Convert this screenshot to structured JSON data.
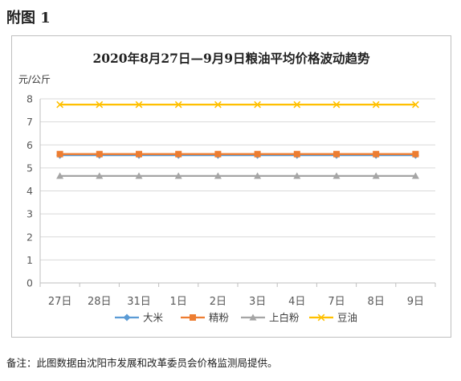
{
  "figure_label": "附图 1",
  "footnote": "备注：此图数据由沈阳市发展和改革委员会价格监测局提供。",
  "colors": {
    "大米": "#5b9bd5",
    "精粉": "#ed7d31",
    "上白粉": "#a5a5a5",
    "豆油": "#ffc000",
    "grid": "#d9d9d9",
    "axis_text": "#595959"
  },
  "chart_data": {
    "type": "line",
    "title": "2020年8月27日—9月9日粮油平均价格波动趋势",
    "ylabel": "元/公斤",
    "xlabel": "",
    "categories": [
      "27日",
      "28日",
      "31日",
      "1日",
      "2日",
      "3日",
      "4日",
      "7日",
      "8日",
      "9日"
    ],
    "ylim": [
      0,
      8
    ],
    "yticks": [
      0,
      1,
      2,
      3,
      4,
      5,
      6,
      7,
      8
    ],
    "grid": true,
    "legend_position": "bottom",
    "series": [
      {
        "name": "大米",
        "marker": "diamond",
        "values": [
          5.55,
          5.55,
          5.55,
          5.55,
          5.55,
          5.55,
          5.55,
          5.55,
          5.55,
          5.55
        ]
      },
      {
        "name": "精粉",
        "marker": "square",
        "values": [
          5.6,
          5.6,
          5.6,
          5.6,
          5.6,
          5.6,
          5.6,
          5.6,
          5.6,
          5.6
        ]
      },
      {
        "name": "上白粉",
        "marker": "triangle",
        "values": [
          4.65,
          4.65,
          4.65,
          4.65,
          4.65,
          4.65,
          4.65,
          4.65,
          4.65,
          4.65
        ]
      },
      {
        "name": "豆油",
        "marker": "x",
        "values": [
          7.75,
          7.75,
          7.75,
          7.75,
          7.75,
          7.75,
          7.75,
          7.75,
          7.75,
          7.75
        ]
      }
    ]
  }
}
